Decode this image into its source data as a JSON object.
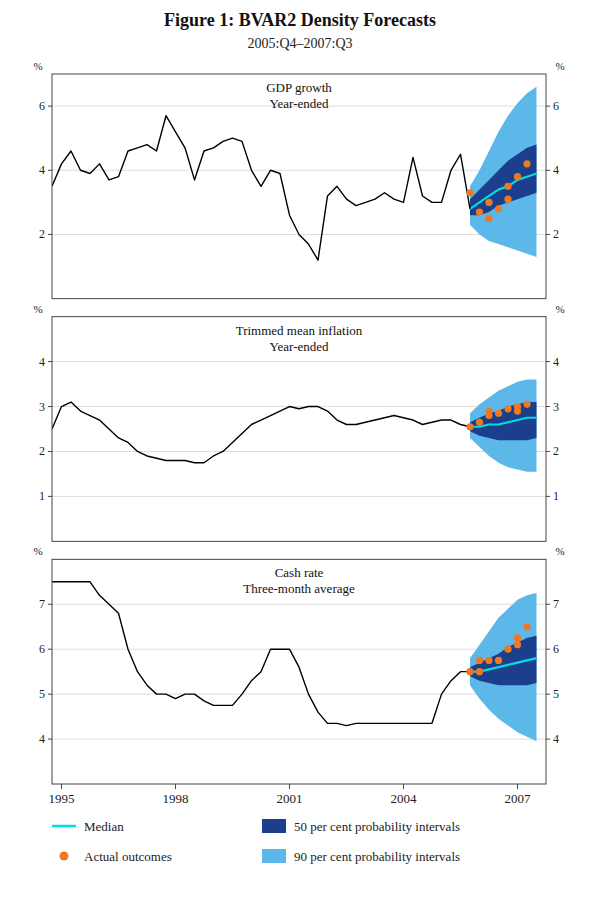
{
  "title": "Figure 1: BVAR2 Density Forecasts",
  "subtitle": "2005:Q4–2007:Q3",
  "chart_data": [
    {
      "type": "line",
      "title": "GDP growth\nYear-ended",
      "ylabel": "%",
      "xlim": [
        1994.75,
        2007.75
      ],
      "xticks": [
        1995,
        1998,
        2001,
        2004,
        2007
      ],
      "ylim": [
        0,
        7
      ],
      "yticks": [
        2,
        4,
        6
      ],
      "grid": true,
      "tick_labels": "y",
      "series": [
        {
          "name": "90 per cent probability intervals",
          "type": "area",
          "color": "#5BB8E8",
          "x": [
            2005.75,
            2006.0,
            2006.25,
            2006.5,
            2006.75,
            2007.0,
            2007.25,
            2007.5
          ],
          "low": [
            2.3,
            2.0,
            1.8,
            1.7,
            1.6,
            1.5,
            1.4,
            1.3
          ],
          "high": [
            3.5,
            4.0,
            4.6,
            5.2,
            5.7,
            6.1,
            6.4,
            6.6
          ]
        },
        {
          "name": "50 per cent probability intervals",
          "type": "area",
          "color": "#1B3F8C",
          "x": [
            2005.75,
            2006.0,
            2006.25,
            2006.5,
            2006.75,
            2007.0,
            2007.25,
            2007.5
          ],
          "low": [
            2.6,
            2.6,
            2.7,
            2.9,
            3.0,
            3.1,
            3.2,
            3.3
          ],
          "high": [
            3.1,
            3.4,
            3.7,
            4.0,
            4.3,
            4.5,
            4.7,
            4.8
          ]
        },
        {
          "name": "Median",
          "type": "line",
          "color": "#00DDDD",
          "x": [
            2005.75,
            2006.0,
            2006.25,
            2006.5,
            2006.75,
            2007.0,
            2007.25,
            2007.5
          ],
          "values": [
            2.8,
            3.0,
            3.2,
            3.4,
            3.5,
            3.7,
            3.8,
            3.9
          ]
        },
        {
          "type": "line",
          "color": "#000000",
          "x": [
            1994.75,
            1995.0,
            1995.25,
            1995.5,
            1995.75,
            1996.0,
            1996.25,
            1996.5,
            1996.75,
            1997.0,
            1997.25,
            1997.5,
            1997.75,
            1998.0,
            1998.25,
            1998.5,
            1998.75,
            1999.0,
            1999.25,
            1999.5,
            1999.75,
            2000.0,
            2000.25,
            2000.5,
            2000.75,
            2001.0,
            2001.25,
            2001.5,
            2001.75,
            2002.0,
            2002.25,
            2002.5,
            2002.75,
            2003.0,
            2003.25,
            2003.5,
            2003.75,
            2004.0,
            2004.25,
            2004.5,
            2004.75,
            2005.0,
            2005.25,
            2005.5,
            2005.75
          ],
          "values": [
            3.5,
            4.2,
            4.6,
            4.0,
            3.9,
            4.2,
            3.7,
            3.8,
            4.6,
            4.7,
            4.8,
            4.6,
            5.7,
            5.2,
            4.7,
            3.7,
            4.6,
            4.7,
            4.9,
            5.0,
            4.9,
            4.0,
            3.5,
            4.0,
            3.9,
            2.6,
            2.0,
            1.7,
            1.2,
            3.2,
            3.5,
            3.1,
            2.9,
            3.0,
            3.1,
            3.3,
            3.1,
            3.0,
            4.4,
            3.2,
            3.0,
            3.0,
            4.0,
            4.5,
            2.8
          ]
        },
        {
          "name": "Actual outcomes",
          "type": "scatter",
          "color": "#F07820",
          "x": [
            2005.75,
            2006.0,
            2006.25,
            2006.25,
            2006.5,
            2006.75,
            2006.75,
            2007.0,
            2007.25
          ],
          "values": [
            3.3,
            2.7,
            2.5,
            3.0,
            2.8,
            3.1,
            3.5,
            3.8,
            4.2
          ]
        }
      ]
    },
    {
      "type": "line",
      "title": "Trimmed mean inflation\nYear-ended",
      "ylabel": "%",
      "xlim": [
        1994.75,
        2007.75
      ],
      "xticks": [
        1995,
        1998,
        2001,
        2004,
        2007
      ],
      "ylim": [
        0,
        5
      ],
      "yticks": [
        1,
        2,
        3,
        4
      ],
      "grid": true,
      "tick_labels": "y",
      "series": [
        {
          "name": "90 per cent probability intervals",
          "type": "area",
          "color": "#5BB8E8",
          "x": [
            2005.75,
            2006.0,
            2006.25,
            2006.5,
            2006.75,
            2007.0,
            2007.25,
            2007.5
          ],
          "low": [
            2.3,
            2.1,
            1.9,
            1.75,
            1.65,
            1.6,
            1.55,
            1.55
          ],
          "high": [
            2.85,
            3.05,
            3.2,
            3.35,
            3.45,
            3.55,
            3.6,
            3.6
          ]
        },
        {
          "name": "50 per cent probability intervals",
          "type": "area",
          "color": "#1B3F8C",
          "x": [
            2005.75,
            2006.0,
            2006.25,
            2006.5,
            2006.75,
            2007.0,
            2007.25,
            2007.5
          ],
          "low": [
            2.45,
            2.35,
            2.3,
            2.25,
            2.25,
            2.25,
            2.25,
            2.3
          ],
          "high": [
            2.65,
            2.75,
            2.85,
            2.9,
            3.0,
            3.05,
            3.1,
            3.1
          ]
        },
        {
          "name": "Median",
          "type": "line",
          "color": "#00DDDD",
          "x": [
            2005.75,
            2006.0,
            2006.25,
            2006.5,
            2006.75,
            2007.0,
            2007.25,
            2007.5
          ],
          "values": [
            2.55,
            2.55,
            2.6,
            2.6,
            2.65,
            2.7,
            2.75,
            2.75
          ]
        },
        {
          "type": "line",
          "color": "#000000",
          "x": [
            1994.75,
            1995.0,
            1995.25,
            1995.5,
            1995.75,
            1996.0,
            1996.25,
            1996.5,
            1996.75,
            1997.0,
            1997.25,
            1997.5,
            1997.75,
            1998.0,
            1998.25,
            1998.5,
            1998.75,
            1999.0,
            1999.25,
            1999.5,
            1999.75,
            2000.0,
            2000.25,
            2000.5,
            2000.75,
            2001.0,
            2001.25,
            2001.5,
            2001.75,
            2002.0,
            2002.25,
            2002.5,
            2002.75,
            2003.0,
            2003.25,
            2003.5,
            2003.75,
            2004.0,
            2004.25,
            2004.5,
            2004.75,
            2005.0,
            2005.25,
            2005.5,
            2005.75
          ],
          "values": [
            2.5,
            3.0,
            3.1,
            2.9,
            2.8,
            2.7,
            2.5,
            2.3,
            2.2,
            2.0,
            1.9,
            1.85,
            1.8,
            1.8,
            1.8,
            1.75,
            1.75,
            1.9,
            2.0,
            2.2,
            2.4,
            2.6,
            2.7,
            2.8,
            2.9,
            3.0,
            2.95,
            3.0,
            3.0,
            2.9,
            2.7,
            2.6,
            2.6,
            2.65,
            2.7,
            2.75,
            2.8,
            2.75,
            2.7,
            2.6,
            2.65,
            2.7,
            2.7,
            2.6,
            2.55
          ]
        },
        {
          "name": "Actual outcomes",
          "type": "scatter",
          "color": "#F07820",
          "x": [
            2005.75,
            2006.0,
            2006.25,
            2006.25,
            2006.5,
            2006.75,
            2007.0,
            2007.0,
            2007.25
          ],
          "values": [
            2.55,
            2.65,
            2.8,
            2.9,
            2.85,
            2.95,
            2.9,
            3.0,
            3.05
          ]
        }
      ]
    },
    {
      "type": "line",
      "title": "Cash rate\nThree-month average",
      "ylabel": "%",
      "xlim": [
        1994.75,
        2007.75
      ],
      "xticks": [
        1995,
        1998,
        2001,
        2004,
        2007
      ],
      "ylim": [
        3,
        8
      ],
      "yticks": [
        4,
        5,
        6,
        7
      ],
      "grid": true,
      "tick_labels": true,
      "series": [
        {
          "name": "90 per cent probability intervals",
          "type": "area",
          "color": "#5BB8E8",
          "x": [
            2005.75,
            2006.0,
            2006.25,
            2006.5,
            2006.75,
            2007.0,
            2007.25,
            2007.5
          ],
          "low": [
            5.2,
            4.9,
            4.65,
            4.45,
            4.3,
            4.15,
            4.05,
            3.95
          ],
          "high": [
            5.8,
            6.1,
            6.4,
            6.7,
            6.9,
            7.1,
            7.2,
            7.25
          ]
        },
        {
          "name": "50 per cent probability intervals",
          "type": "area",
          "color": "#1B3F8C",
          "x": [
            2005.75,
            2006.0,
            2006.25,
            2006.5,
            2006.75,
            2007.0,
            2007.25,
            2007.5
          ],
          "low": [
            5.4,
            5.3,
            5.25,
            5.2,
            5.2,
            5.2,
            5.2,
            5.25
          ],
          "high": [
            5.6,
            5.7,
            5.8,
            5.9,
            6.05,
            6.15,
            6.25,
            6.3
          ]
        },
        {
          "name": "Median",
          "type": "line",
          "color": "#00DDDD",
          "x": [
            2005.75,
            2006.0,
            2006.25,
            2006.5,
            2006.75,
            2007.0,
            2007.25,
            2007.5
          ],
          "values": [
            5.5,
            5.5,
            5.55,
            5.6,
            5.65,
            5.7,
            5.75,
            5.8
          ]
        },
        {
          "type": "line",
          "color": "#000000",
          "x": [
            1994.75,
            1995.0,
            1995.25,
            1995.5,
            1995.75,
            1996.0,
            1996.25,
            1996.5,
            1996.75,
            1997.0,
            1997.25,
            1997.5,
            1997.75,
            1998.0,
            1998.25,
            1998.5,
            1998.75,
            1999.0,
            1999.25,
            1999.5,
            1999.75,
            2000.0,
            2000.25,
            2000.5,
            2000.75,
            2001.0,
            2001.25,
            2001.5,
            2001.75,
            2002.0,
            2002.25,
            2002.5,
            2002.75,
            2003.0,
            2003.25,
            2003.5,
            2003.75,
            2004.0,
            2004.25,
            2004.5,
            2004.75,
            2005.0,
            2005.25,
            2005.5,
            2005.75
          ],
          "values": [
            7.5,
            7.5,
            7.5,
            7.5,
            7.5,
            7.2,
            7.0,
            6.8,
            6.0,
            5.5,
            5.2,
            5.0,
            5.0,
            4.9,
            5.0,
            5.0,
            4.85,
            4.75,
            4.75,
            4.75,
            5.0,
            5.3,
            5.5,
            6.0,
            6.0,
            6.0,
            5.6,
            5.0,
            4.6,
            4.35,
            4.35,
            4.3,
            4.35,
            4.35,
            4.35,
            4.35,
            4.35,
            4.35,
            4.35,
            4.35,
            4.35,
            5.0,
            5.3,
            5.5,
            5.5
          ]
        },
        {
          "name": "Actual outcomes",
          "type": "scatter",
          "color": "#F07820",
          "x": [
            2005.75,
            2006.0,
            2006.0,
            2006.25,
            2006.5,
            2006.75,
            2007.0,
            2007.0,
            2007.25
          ],
          "values": [
            5.5,
            5.5,
            5.75,
            5.75,
            5.75,
            6.0,
            6.1,
            6.25,
            6.5
          ]
        }
      ]
    }
  ]
}
